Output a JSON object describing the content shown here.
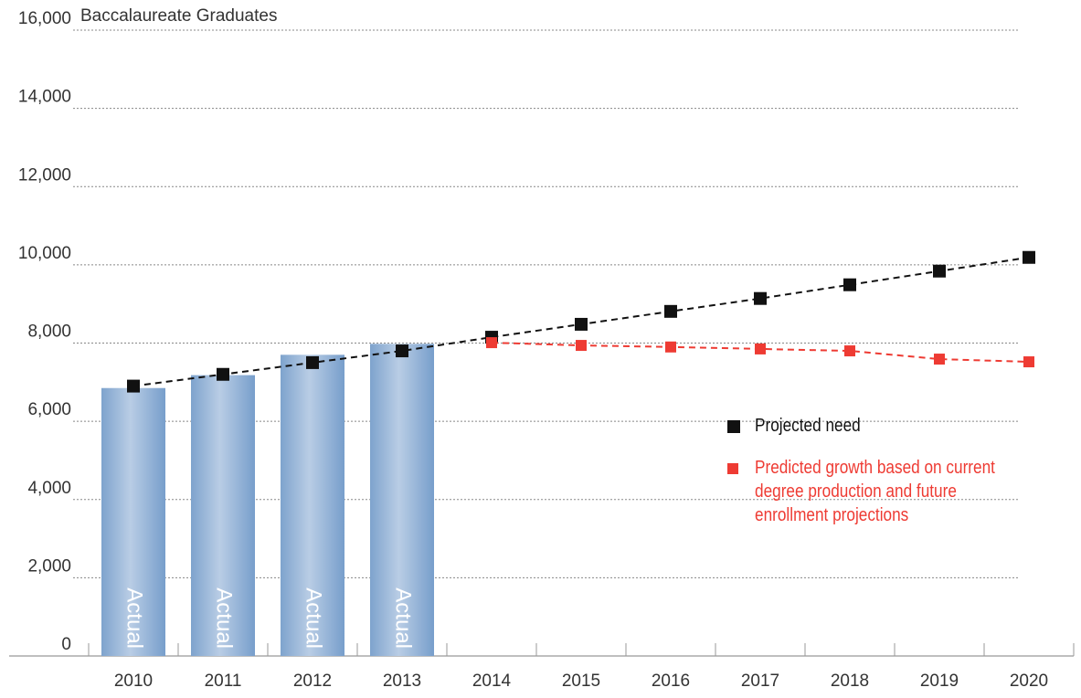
{
  "chart_data": {
    "type": "bar-line",
    "title": "Baccalaureate Graduates",
    "categories": [
      "2010",
      "2011",
      "2012",
      "2013",
      "2014",
      "2015",
      "2016",
      "2017",
      "2018",
      "2019",
      "2020"
    ],
    "bars": {
      "color": "#7ea3cd",
      "values": [
        6850,
        7180,
        7700,
        7980,
        null,
        null,
        null,
        null,
        null,
        null,
        null
      ],
      "labels": [
        "Actual",
        "Actual",
        "Actual",
        "Actual",
        null,
        null,
        null,
        null,
        null,
        null,
        null
      ]
    },
    "series": [
      {
        "name": "Projected need",
        "color": "#111111",
        "values": [
          6900,
          7200,
          7500,
          7800,
          8150,
          8480,
          8810,
          9140,
          9490,
          9840,
          10190
        ]
      },
      {
        "name": "Predicted growth based on current degree production and future enrollment projections",
        "color": "#ee3b33",
        "values": [
          null,
          null,
          null,
          null,
          8010,
          7940,
          7900,
          7850,
          7800,
          7590,
          7520
        ]
      }
    ],
    "ylim": [
      0,
      16000
    ],
    "yticks": [
      {
        "value": 0,
        "label": "0"
      },
      {
        "value": 2000,
        "label": "2,000"
      },
      {
        "value": 4000,
        "label": "4,000"
      },
      {
        "value": 6000,
        "label": "6,000"
      },
      {
        "value": 8000,
        "label": "8,000"
      },
      {
        "value": 10000,
        "label": "10,000"
      },
      {
        "value": 12000,
        "label": "12,000"
      },
      {
        "value": 14000,
        "label": "14,000"
      },
      {
        "value": 16000,
        "label": "16,000"
      }
    ],
    "grid": true
  }
}
